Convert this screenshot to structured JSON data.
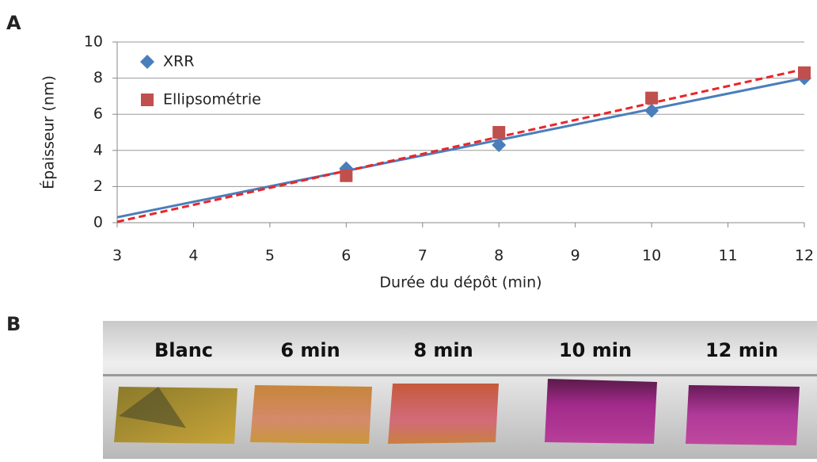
{
  "panel_labels": [
    "A",
    "B"
  ],
  "chart_data": {
    "type": "scatter",
    "x_label": "Durée du dépôt (min)",
    "y_label": "Épaisseur (nm)",
    "xlim": [
      3,
      12
    ],
    "xticks": [
      3,
      4,
      5,
      6,
      7,
      8,
      9,
      10,
      11,
      12
    ],
    "ylim": [
      0,
      10
    ],
    "yticks": [
      0,
      2,
      4,
      6,
      8,
      10
    ],
    "grid": true,
    "legend": "upper left",
    "series": [
      {
        "name": "XRR",
        "color": "#4a7ebb",
        "marker": "diamond",
        "x": [
          6,
          8,
          10,
          12
        ],
        "values": [
          3.0,
          4.3,
          6.2,
          8.0
        ],
        "trend": {
          "x": [
            3,
            12
          ],
          "values": [
            0.3,
            8.0
          ],
          "color": "#4a7ebb",
          "dash": false
        }
      },
      {
        "name": "Ellipsométrie",
        "color": "#c0504d",
        "marker": "square",
        "x": [
          6,
          8,
          10,
          12
        ],
        "values": [
          2.6,
          5.0,
          6.9,
          8.3
        ],
        "trend": {
          "x": [
            3,
            12
          ],
          "values": [
            0.05,
            8.5
          ],
          "color": "#e8262b",
          "dash": true
        }
      }
    ]
  },
  "photo": {
    "labels": [
      "Blanc",
      "6 min",
      "8 min",
      "10 min",
      "12 min"
    ]
  }
}
